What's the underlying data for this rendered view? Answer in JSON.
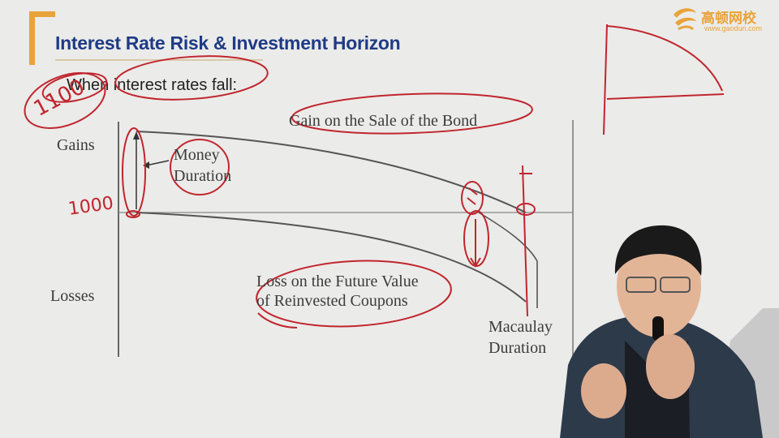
{
  "slide": {
    "title": "Interest Rate Risk & Investment Horizon",
    "subtitle": "When interest rates fall:"
  },
  "diagram": {
    "gains_label": "Gains",
    "losses_label": "Losses",
    "gain_label": "Gain on the Sale of the Bond",
    "loss_label_line1": "Loss on the Future Value",
    "loss_label_line2": "of Reinvested Coupons",
    "money_duration_line1": "Money",
    "money_duration_line2": "Duration",
    "macaulay_line1": "Macaulay",
    "macaulay_line2": "Duration"
  },
  "annotations": {
    "handwritten_1100": "1100",
    "handwritten_1000": "1000",
    "ink_color": "#c0262e"
  },
  "logo": {
    "name": "高顿网校",
    "url": "www.gaodun.com",
    "color": "#e8a33a"
  },
  "colors": {
    "title": "#1f3b86",
    "accent": "#e8a33a"
  }
}
